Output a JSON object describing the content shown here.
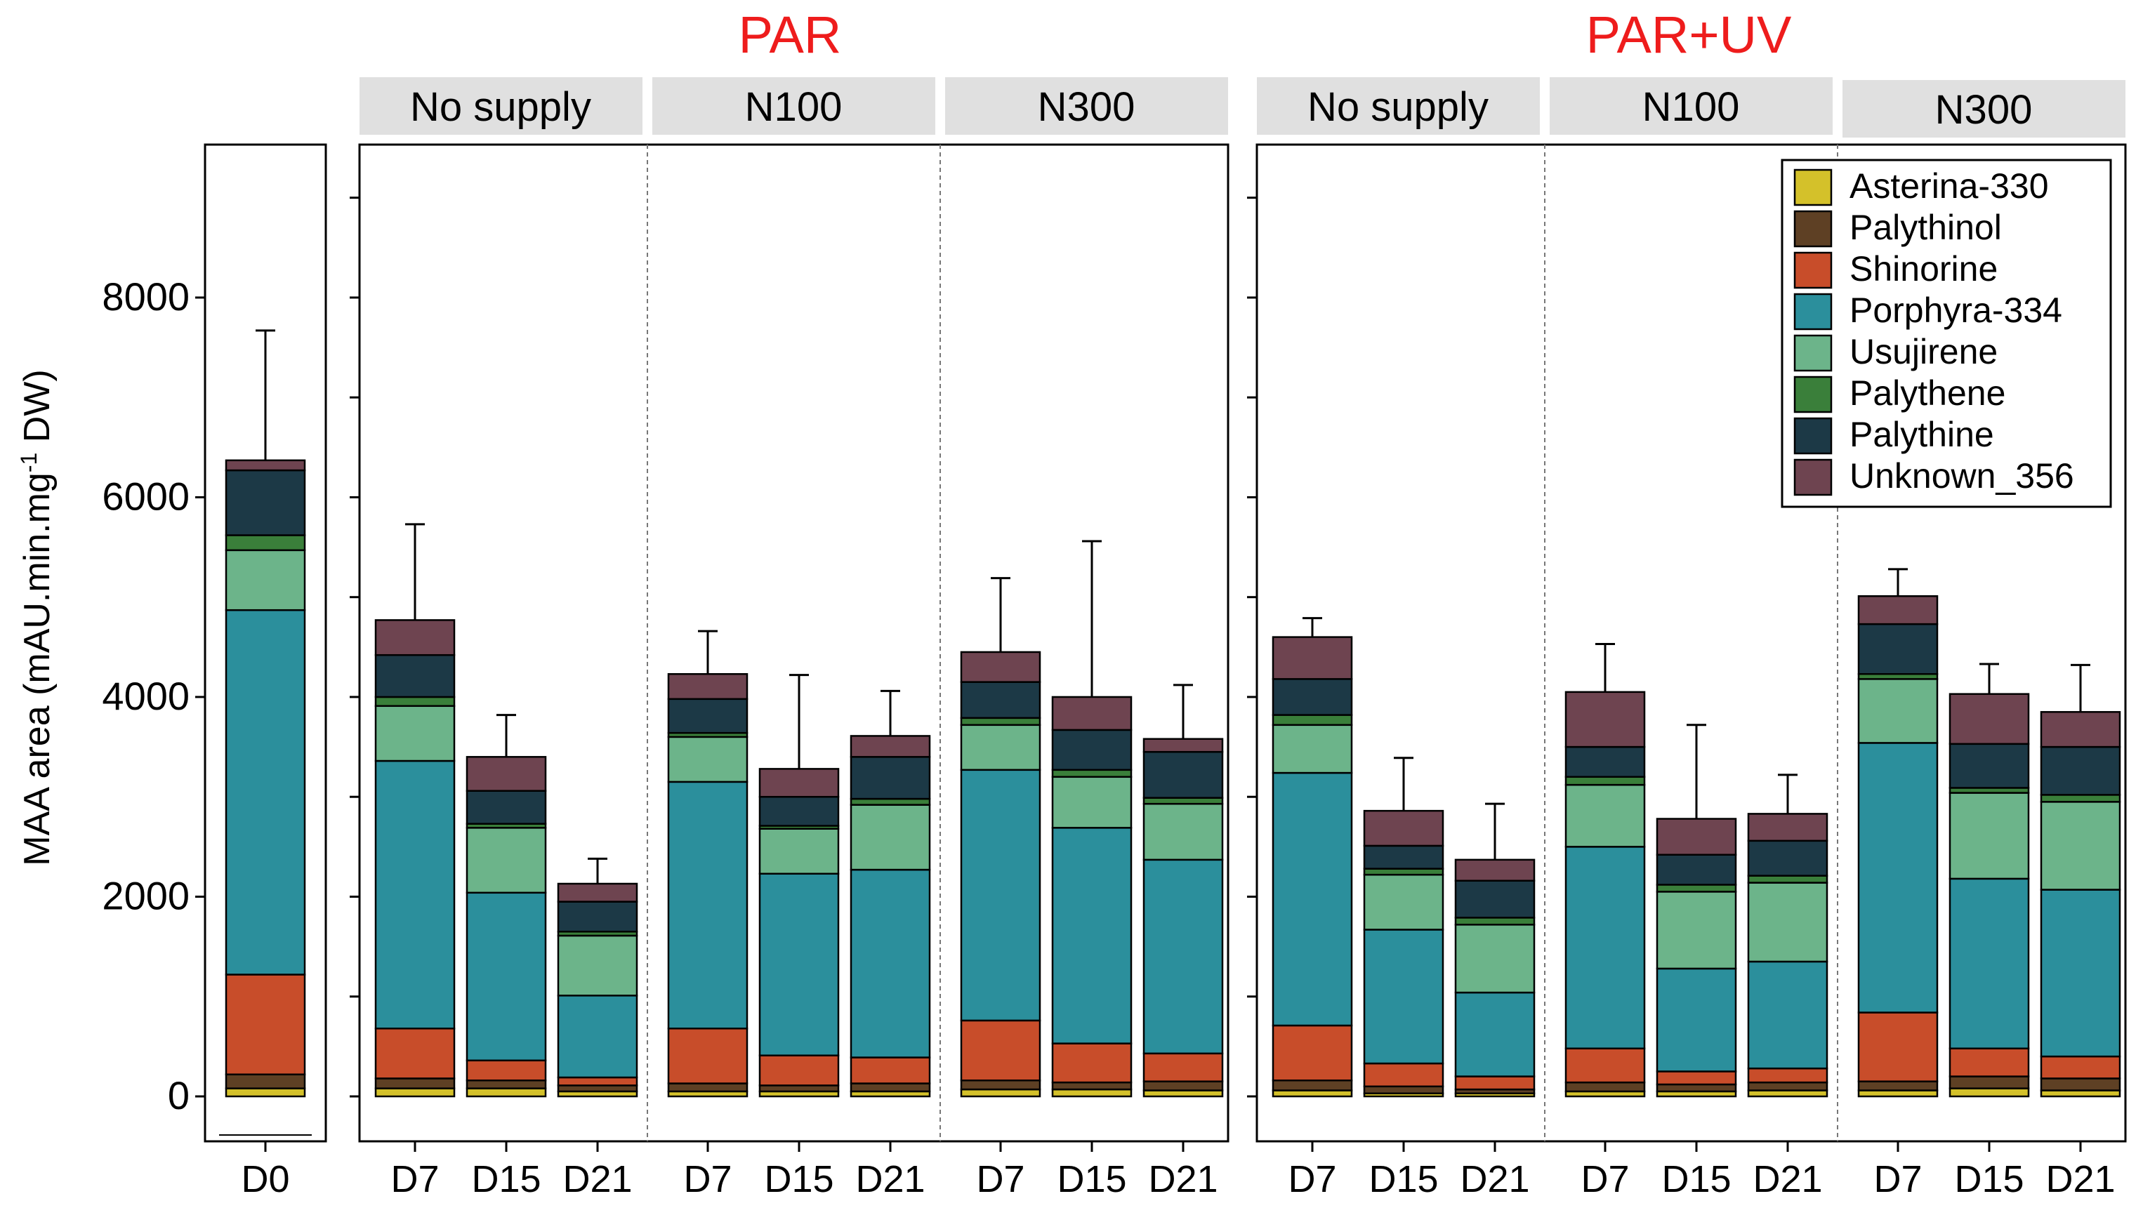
{
  "chart_data": {
    "type": "bar",
    "stacked": true,
    "ylabel_main": "MAA area (mAU.min.mg",
    "ylabel_sup": "-1",
    "ylabel_tail": " DW)",
    "ylim": [
      0,
      9300
    ],
    "yticks": [
      0,
      2000,
      4000,
      6000,
      8000
    ],
    "grid": false,
    "legend_position": "top-right",
    "group_titles": [
      "PAR",
      "PAR+UV"
    ],
    "strip_labels": [
      "No supply",
      "N100",
      "N300",
      "No supply",
      "N100",
      "N300"
    ],
    "components": [
      {
        "name": "Asterina-330",
        "color": "#d4c12a"
      },
      {
        "name": "Palythinol",
        "color": "#5e4024"
      },
      {
        "name": "Shinorine",
        "color": "#c84d2a"
      },
      {
        "name": "Porphyra-334",
        "color": "#2b8f9c"
      },
      {
        "name": "Usujirene",
        "color": "#6cb48a"
      },
      {
        "name": "Palythene",
        "color": "#3a7f3a"
      },
      {
        "name": "Palythine",
        "color": "#1c3946"
      },
      {
        "name": "Unknown_356",
        "color": "#6e4450"
      }
    ],
    "bars": [
      {
        "label": "D0",
        "panel": 0,
        "values": [
          80,
          140,
          1000,
          3650,
          600,
          150,
          650,
          100
        ],
        "error": 1300
      },
      {
        "label": "D7",
        "panel": 1,
        "values": [
          80,
          100,
          500,
          2680,
          550,
          90,
          420,
          350
        ],
        "error": 960
      },
      {
        "label": "D15",
        "panel": 1,
        "values": [
          80,
          80,
          200,
          1680,
          650,
          40,
          330,
          340
        ],
        "error": 420
      },
      {
        "label": "D21",
        "panel": 1,
        "values": [
          50,
          60,
          80,
          820,
          600,
          40,
          300,
          180
        ],
        "error": 250
      },
      {
        "label": "D7",
        "panel": 2,
        "values": [
          50,
          80,
          550,
          2470,
          450,
          40,
          340,
          250
        ],
        "error": 430
      },
      {
        "label": "D15",
        "panel": 2,
        "values": [
          50,
          60,
          300,
          1820,
          450,
          30,
          290,
          280
        ],
        "error": 940
      },
      {
        "label": "D21",
        "panel": 2,
        "values": [
          50,
          80,
          260,
          1880,
          650,
          60,
          420,
          210
        ],
        "error": 450
      },
      {
        "label": "D7",
        "panel": 3,
        "values": [
          70,
          90,
          600,
          2510,
          450,
          70,
          360,
          300
        ],
        "error": 740
      },
      {
        "label": "D15",
        "panel": 3,
        "values": [
          70,
          70,
          390,
          2160,
          510,
          70,
          400,
          330
        ],
        "error": 1560
      },
      {
        "label": "D21",
        "panel": 3,
        "values": [
          60,
          90,
          280,
          1940,
          560,
          60,
          460,
          130
        ],
        "error": 540
      },
      {
        "label": "D7",
        "panel": 4,
        "values": [
          60,
          100,
          550,
          2530,
          480,
          100,
          360,
          420
        ],
        "error": 190
      },
      {
        "label": "D15",
        "panel": 4,
        "values": [
          30,
          70,
          230,
          1340,
          550,
          60,
          230,
          350
        ],
        "error": 530
      },
      {
        "label": "D21",
        "panel": 4,
        "values": [
          30,
          40,
          130,
          840,
          680,
          70,
          370,
          210
        ],
        "error": 560
      },
      {
        "label": "D7",
        "panel": 5,
        "values": [
          50,
          90,
          340,
          2020,
          620,
          80,
          300,
          550
        ],
        "error": 480
      },
      {
        "label": "D15",
        "panel": 5,
        "values": [
          50,
          70,
          130,
          1030,
          770,
          70,
          300,
          360
        ],
        "error": 940
      },
      {
        "label": "D21",
        "panel": 5,
        "values": [
          60,
          80,
          140,
          1070,
          790,
          70,
          350,
          270
        ],
        "error": 390
      },
      {
        "label": "D7",
        "panel": 6,
        "values": [
          60,
          90,
          690,
          2700,
          640,
          50,
          500,
          280
        ],
        "error": 270
      },
      {
        "label": "D15",
        "panel": 6,
        "values": [
          80,
          120,
          280,
          1700,
          860,
          50,
          440,
          500
        ],
        "error": 300
      },
      {
        "label": "D21",
        "panel": 6,
        "values": [
          60,
          120,
          220,
          1670,
          880,
          70,
          480,
          350
        ],
        "error": 470
      }
    ]
  }
}
